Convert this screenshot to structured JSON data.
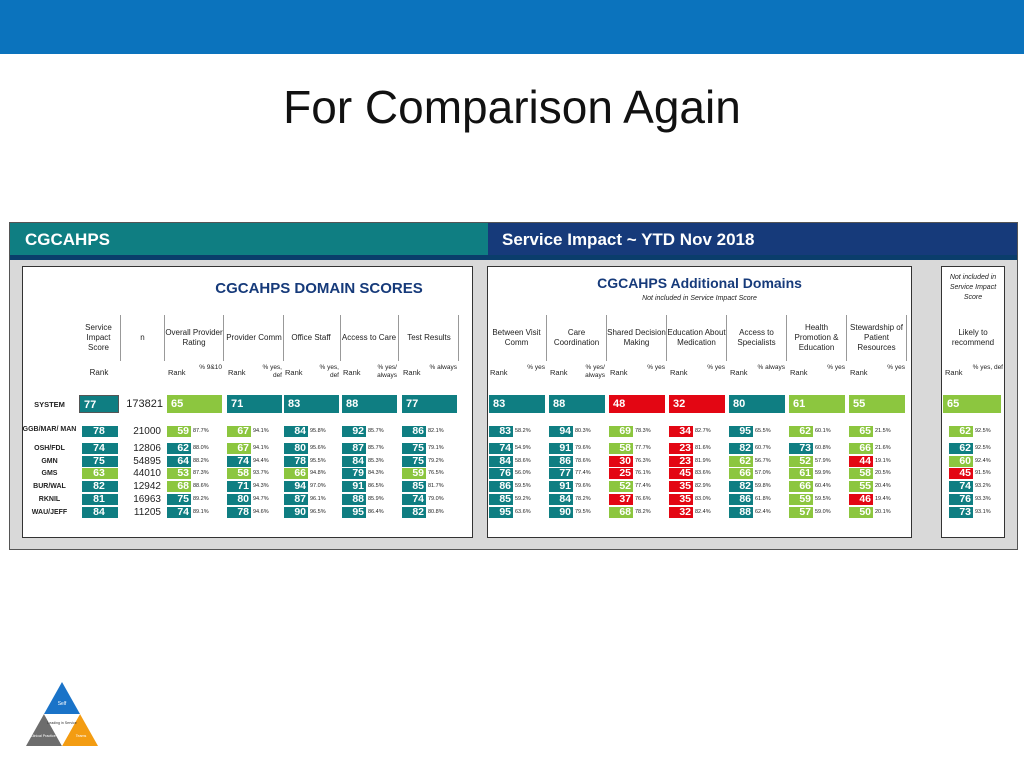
{
  "slide": {
    "title": "For Comparison Again"
  },
  "panel": {
    "left_title": "CGCAHPS",
    "right_title": "Service Impact ~ YTD Nov 2018",
    "domain_title": "CGCAHPS DOMAIN SCORES",
    "additional_title": "CGCAHPS Additional Domains",
    "additional_sub": "Not included in Service Impact Score",
    "nis_note": "Not included in Service Impact Score"
  },
  "colors": {
    "teal": "#0f7e82",
    "green": "#8cc63f",
    "red": "#e30613",
    "navy": "#163a7a"
  },
  "columns": {
    "sis": "Service Impact Score",
    "n": "n",
    "domain": [
      {
        "label": "Overall Provider Rating",
        "pct": "% 9&10"
      },
      {
        "label": "Provider Comm",
        "pct": "% yes, def"
      },
      {
        "label": "Office Staff",
        "pct": "% yes, def"
      },
      {
        "label": "Access to Care",
        "pct": "% yes/ always"
      },
      {
        "label": "Test Results",
        "pct": "% always"
      }
    ],
    "additional": [
      {
        "label": "Between Visit Comm",
        "pct": "% yes"
      },
      {
        "label": "Care Coordination",
        "pct": "% yes/ always"
      },
      {
        "label": "Shared Decision Making",
        "pct": "% yes"
      },
      {
        "label": "Education About Medication",
        "pct": "% yes"
      },
      {
        "label": "Access to Specialists",
        "pct": "% always"
      },
      {
        "label": "Health Promotion & Education",
        "pct": "% yes"
      },
      {
        "label": "Stewardship of Patient Resources",
        "pct": "% yes"
      }
    ],
    "likely": {
      "label": "Likely to recommend",
      "pct": "% yes, def"
    },
    "rank": "Rank"
  },
  "system": {
    "label": "SYSTEM",
    "sis": "77",
    "n": "173821",
    "domain": [
      {
        "rank": "65",
        "c": "g"
      },
      {
        "rank": "71",
        "c": "t"
      },
      {
        "rank": "83",
        "c": "t"
      },
      {
        "rank": "88",
        "c": "t"
      },
      {
        "rank": "77",
        "c": "t"
      }
    ],
    "additional": [
      {
        "rank": "83",
        "c": "t"
      },
      {
        "rank": "88",
        "c": "t"
      },
      {
        "rank": "48",
        "c": "r"
      },
      {
        "rank": "32",
        "c": "r"
      },
      {
        "rank": "80",
        "c": "t"
      },
      {
        "rank": "61",
        "c": "g"
      },
      {
        "rank": "55",
        "c": "g"
      }
    ],
    "likely": {
      "rank": "65",
      "c": "g"
    }
  },
  "rows": [
    {
      "label": "GGB/MAR/ MAN",
      "sis": "78",
      "sis_c": "t",
      "n": "21000",
      "domain": [
        [
          "59",
          "87.7%",
          "g"
        ],
        [
          "67",
          "94.1%",
          "g"
        ],
        [
          "84",
          "95.8%",
          "t"
        ],
        [
          "92",
          "85.7%",
          "t"
        ],
        [
          "86",
          "82.1%",
          "t"
        ]
      ],
      "additional": [
        [
          "83",
          "58.2%",
          "t"
        ],
        [
          "94",
          "80.3%",
          "t"
        ],
        [
          "69",
          "78.3%",
          "g"
        ],
        [
          "34",
          "82.7%",
          "r"
        ],
        [
          "95",
          "65.5%",
          "t"
        ],
        [
          "62",
          "60.1%",
          "g"
        ],
        [
          "65",
          "21.5%",
          "g"
        ]
      ],
      "likely": [
        "62",
        "92.5%",
        "g"
      ]
    },
    {
      "label": "OSH/FDL",
      "sis": "74",
      "sis_c": "t",
      "n": "12806",
      "domain": [
        [
          "62",
          "88.0%",
          "t"
        ],
        [
          "67",
          "94.1%",
          "g"
        ],
        [
          "80",
          "95.6%",
          "t"
        ],
        [
          "87",
          "85.7%",
          "t"
        ],
        [
          "75",
          "79.1%",
          "t"
        ]
      ],
      "additional": [
        [
          "74",
          "54.9%",
          "t"
        ],
        [
          "91",
          "79.6%",
          "t"
        ],
        [
          "58",
          "77.7%",
          "g"
        ],
        [
          "23",
          "81.6%",
          "r"
        ],
        [
          "82",
          "60.7%",
          "t"
        ],
        [
          "73",
          "60.8%",
          "t"
        ],
        [
          "66",
          "21.6%",
          "g"
        ]
      ],
      "likely": [
        "62",
        "92.5%",
        "t"
      ]
    },
    {
      "label": "GMN",
      "sis": "75",
      "sis_c": "t",
      "n": "54895",
      "domain": [
        [
          "64",
          "88.2%",
          "t"
        ],
        [
          "74",
          "94.4%",
          "t"
        ],
        [
          "78",
          "95.5%",
          "t"
        ],
        [
          "84",
          "85.3%",
          "t"
        ],
        [
          "75",
          "79.2%",
          "t"
        ]
      ],
      "additional": [
        [
          "84",
          "58.6%",
          "t"
        ],
        [
          "86",
          "78.6%",
          "t"
        ],
        [
          "30",
          "76.3%",
          "r"
        ],
        [
          "23",
          "81.9%",
          "r"
        ],
        [
          "62",
          "56.7%",
          "g"
        ],
        [
          "52",
          "57.9%",
          "g"
        ],
        [
          "44",
          "19.1%",
          "r"
        ]
      ],
      "likely": [
        "60",
        "92.4%",
        "g"
      ]
    },
    {
      "label": "GMS",
      "sis": "63",
      "sis_c": "g",
      "n": "44010",
      "domain": [
        [
          "53",
          "87.3%",
          "g"
        ],
        [
          "58",
          "93.7%",
          "g"
        ],
        [
          "66",
          "94.8%",
          "g"
        ],
        [
          "79",
          "84.3%",
          "t"
        ],
        [
          "59",
          "76.5%",
          "g"
        ]
      ],
      "additional": [
        [
          "76",
          "56.0%",
          "t"
        ],
        [
          "77",
          "77.4%",
          "t"
        ],
        [
          "25",
          "76.1%",
          "r"
        ],
        [
          "45",
          "83.6%",
          "r"
        ],
        [
          "66",
          "57.0%",
          "g"
        ],
        [
          "61",
          "59.9%",
          "g"
        ],
        [
          "58",
          "20.5%",
          "g"
        ]
      ],
      "likely": [
        "45",
        "91.5%",
        "r"
      ]
    },
    {
      "label": "BUR/WAL",
      "sis": "82",
      "sis_c": "t",
      "n": "12942",
      "domain": [
        [
          "68",
          "88.6%",
          "g"
        ],
        [
          "71",
          "94.3%",
          "t"
        ],
        [
          "94",
          "97.0%",
          "t"
        ],
        [
          "91",
          "86.5%",
          "t"
        ],
        [
          "85",
          "81.7%",
          "t"
        ]
      ],
      "additional": [
        [
          "86",
          "59.5%",
          "t"
        ],
        [
          "91",
          "79.6%",
          "t"
        ],
        [
          "52",
          "77.4%",
          "g"
        ],
        [
          "35",
          "82.9%",
          "r"
        ],
        [
          "82",
          "59.8%",
          "t"
        ],
        [
          "66",
          "60.4%",
          "g"
        ],
        [
          "55",
          "20.4%",
          "g"
        ]
      ],
      "likely": [
        "74",
        "93.2%",
        "t"
      ]
    },
    {
      "label": "RKNIL",
      "sis": "81",
      "sis_c": "t",
      "n": "16963",
      "domain": [
        [
          "75",
          "89.2%",
          "t"
        ],
        [
          "80",
          "94.7%",
          "t"
        ],
        [
          "87",
          "96.1%",
          "t"
        ],
        [
          "88",
          "85.9%",
          "t"
        ],
        [
          "74",
          "79.0%",
          "t"
        ]
      ],
      "additional": [
        [
          "85",
          "59.2%",
          "t"
        ],
        [
          "84",
          "78.2%",
          "t"
        ],
        [
          "37",
          "76.6%",
          "r"
        ],
        [
          "35",
          "83.0%",
          "r"
        ],
        [
          "86",
          "61.8%",
          "t"
        ],
        [
          "59",
          "59.5%",
          "g"
        ],
        [
          "46",
          "19.4%",
          "r"
        ]
      ],
      "likely": [
        "76",
        "93.3%",
        "t"
      ]
    },
    {
      "label": "WAU/JEFF",
      "sis": "84",
      "sis_c": "t",
      "n": "11205",
      "domain": [
        [
          "74",
          "89.1%",
          "t"
        ],
        [
          "78",
          "94.6%",
          "t"
        ],
        [
          "90",
          "96.5%",
          "t"
        ],
        [
          "95",
          "86.4%",
          "t"
        ],
        [
          "82",
          "80.8%",
          "t"
        ]
      ],
      "additional": [
        [
          "95",
          "63.6%",
          "t"
        ],
        [
          "90",
          "79.5%",
          "t"
        ],
        [
          "68",
          "78.2%",
          "g"
        ],
        [
          "32",
          "82.4%",
          "r"
        ],
        [
          "88",
          "62.4%",
          "t"
        ],
        [
          "57",
          "59.0%",
          "g"
        ],
        [
          "50",
          "20.1%",
          "g"
        ]
      ],
      "likely": [
        "73",
        "93.1%",
        "t"
      ]
    }
  ],
  "logo": {
    "top": "Self",
    "center": "Leading in Service",
    "left": "Clinical Practice",
    "right": "Teams"
  }
}
